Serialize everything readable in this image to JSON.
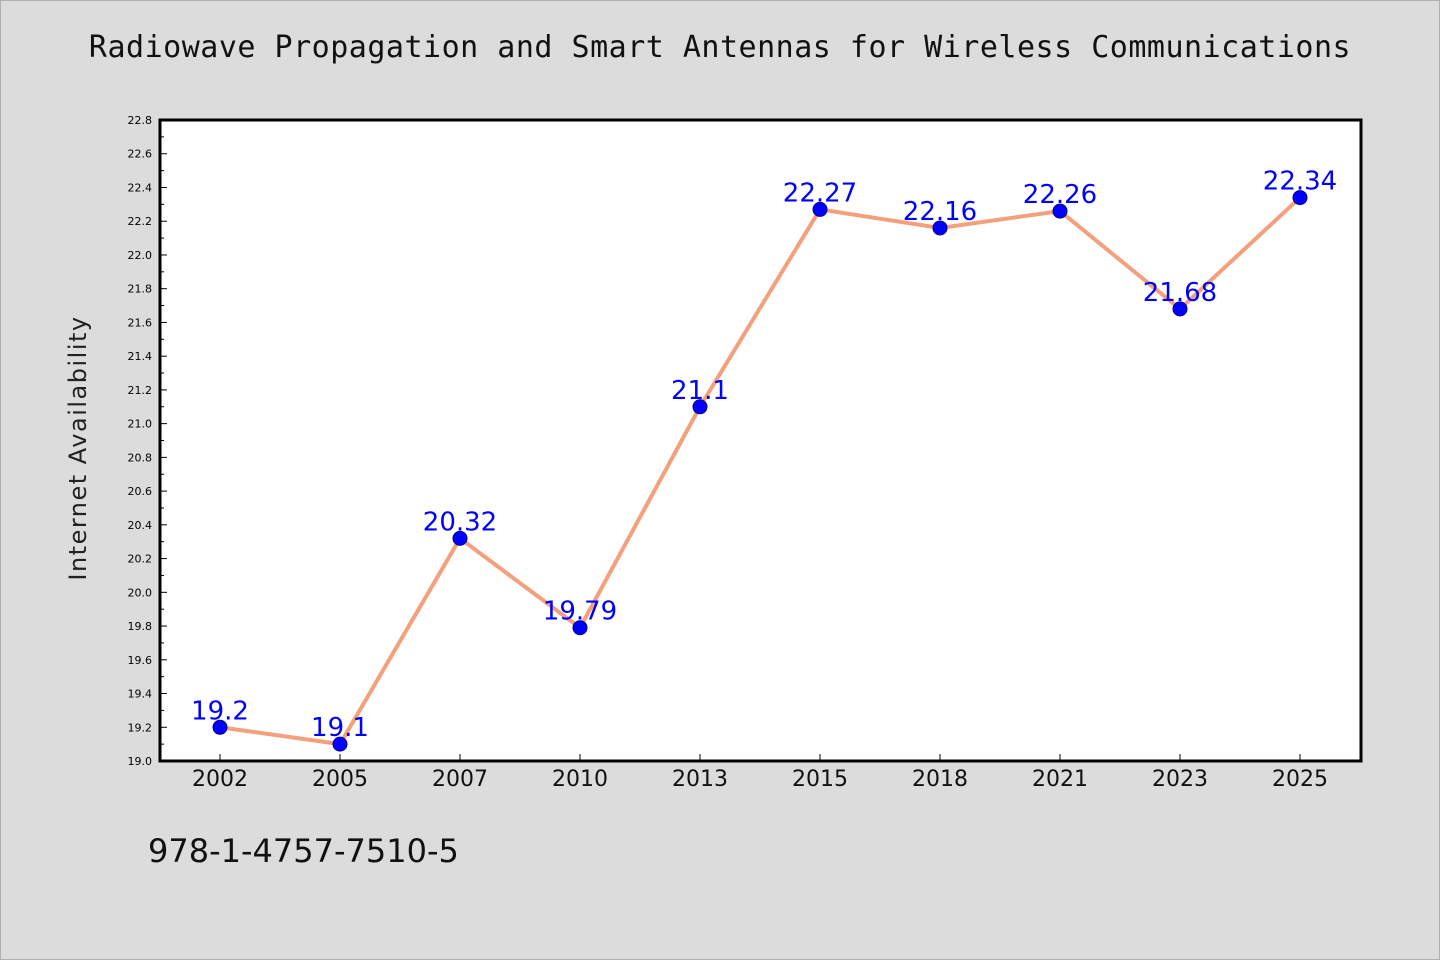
{
  "chart_data": {
    "type": "line",
    "title": "Radiowave Propagation and Smart Antennas for Wireless Communications",
    "xlabel": "",
    "ylabel": "Internet Availability",
    "categories": [
      "2002",
      "2005",
      "2007",
      "2010",
      "2013",
      "2015",
      "2018",
      "2021",
      "2023",
      "2025"
    ],
    "series": [
      {
        "values": [
          19.2,
          19.1,
          20.32,
          19.79,
          21.1,
          22.27,
          22.16,
          22.26,
          21.68,
          22.34
        ],
        "data_labels": [
          "19.2",
          "19.1",
          "20.32",
          "19.79",
          "21.1",
          "22.27",
          "22.16",
          "22.26",
          "21.68",
          "22.34"
        ],
        "line_color": "#f4a07c",
        "marker_color": "#0000ff"
      }
    ],
    "ylim": [
      19.0,
      22.8
    ],
    "yticks": [
      "19.0",
      "19.2",
      "19.4",
      "19.6",
      "19.8",
      "20.0",
      "20.2",
      "20.4",
      "20.6",
      "20.8",
      "21.0",
      "21.2",
      "21.4",
      "21.6",
      "21.8",
      "22.0",
      "22.2",
      "22.4",
      "22.6",
      "22.8"
    ],
    "grid": false,
    "legend": "none"
  },
  "footer": {
    "isbn": "978-1-4757-7510-5"
  }
}
